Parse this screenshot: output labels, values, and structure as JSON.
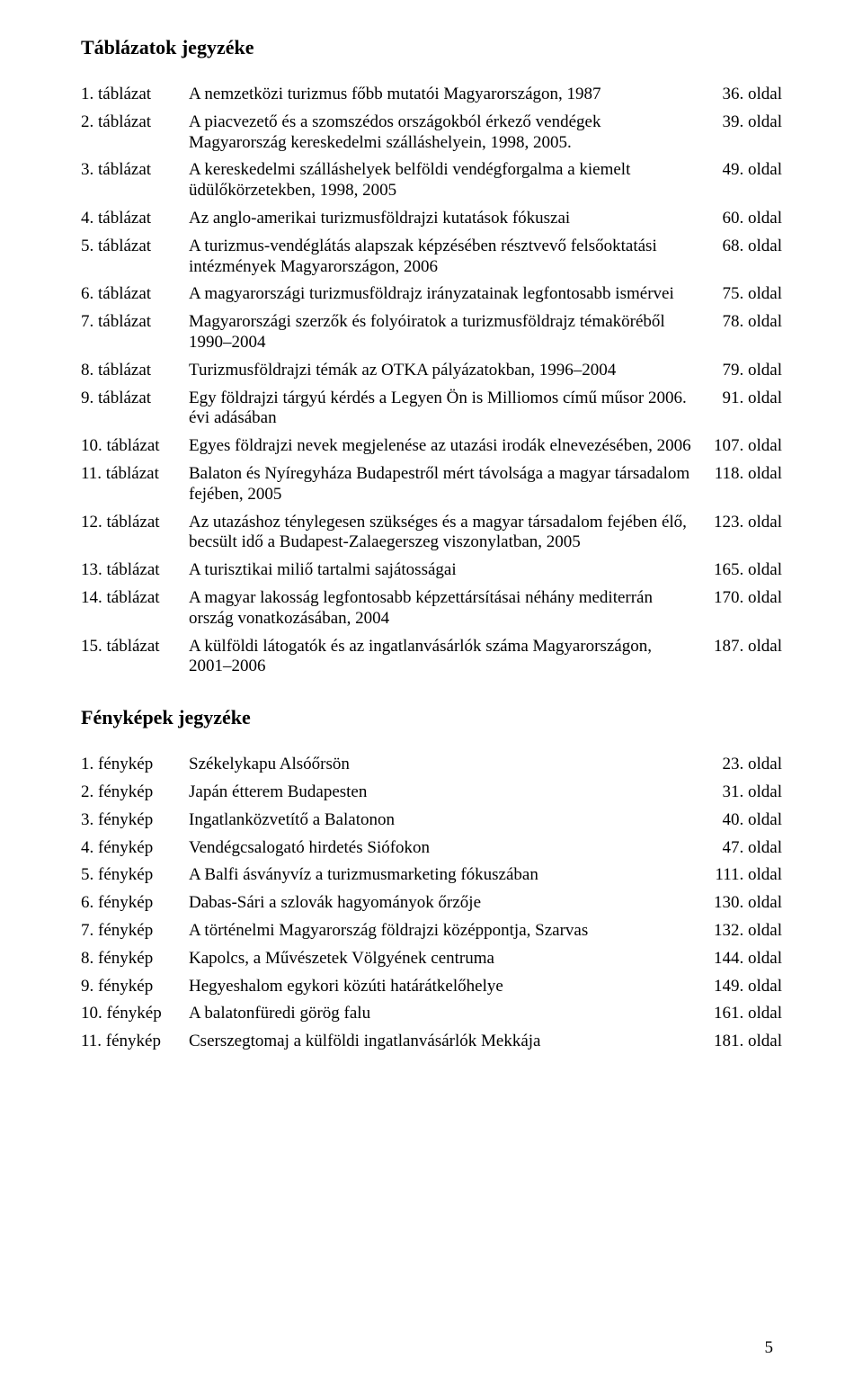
{
  "tables_heading": "Táblázatok jegyzéke",
  "photos_heading": "Fényképek jegyzéke",
  "page_number": "5",
  "tables": [
    {
      "label": "1. táblázat",
      "desc": "A nemzetközi turizmus főbb mutatói Magyarországon, 1987",
      "page": "36. oldal"
    },
    {
      "label": "2. táblázat",
      "desc": "A piacvezető és a szomszédos országokból érkező vendégek Magyarország kereskedelmi szálláshelyein, 1998, 2005.",
      "page": "39. oldal"
    },
    {
      "label": "3. táblázat",
      "desc": "A kereskedelmi szálláshelyek belföldi vendégforgalma a kiemelt üdülőkörzetekben, 1998, 2005",
      "page": "49. oldal"
    },
    {
      "label": "4. táblázat",
      "desc": "Az anglo-amerikai turizmusföldrajzi kutatások fókuszai",
      "page": "60. oldal"
    },
    {
      "label": "5. táblázat",
      "desc": "A turizmus-vendéglátás alapszak képzésében résztvevő felsőoktatási intézmények Magyarországon, 2006",
      "page": "68. oldal"
    },
    {
      "label": "6. táblázat",
      "desc": "A magyarországi turizmusföldrajz irányzatainak legfontosabb ismérvei",
      "page": "75. oldal"
    },
    {
      "label": "7. táblázat",
      "desc": "Magyarországi szerzők és folyóiratok a turizmusföldrajz témaköréből 1990–2004",
      "page": "78. oldal"
    },
    {
      "label": "8. táblázat",
      "desc": "Turizmusföldrajzi témák az OTKA pályázatokban, 1996–2004",
      "page": "79. oldal"
    },
    {
      "label": "9. táblázat",
      "desc": "Egy földrajzi tárgyú kérdés a Legyen Ön is Milliomos című műsor 2006. évi adásában",
      "page": "91. oldal"
    },
    {
      "label": "10. táblázat",
      "desc": "Egyes földrajzi nevek megjelenése az utazási irodák elnevezésében, 2006",
      "page": "107. oldal"
    },
    {
      "label": "11. táblázat",
      "desc": "Balaton és Nyíregyháza Budapestről mért távolsága a magyar társadalom fejében, 2005",
      "page": "118. oldal"
    },
    {
      "label": "12. táblázat",
      "desc": "Az utazáshoz ténylegesen szükséges és a magyar társadalom fejében élő, becsült idő a Budapest-Zalaegerszeg viszonylatban, 2005",
      "page": "123. oldal"
    },
    {
      "label": "13. táblázat",
      "desc": "A turisztikai miliő tartalmi sajátosságai",
      "page": "165. oldal"
    },
    {
      "label": "14. táblázat",
      "desc": "A magyar lakosság legfontosabb képzettársításai néhány mediterrán ország vonatkozásában, 2004",
      "page": "170. oldal"
    },
    {
      "label": "15. táblázat",
      "desc": "A külföldi látogatók és az ingatlanvásárlók száma Magyarországon, 2001–2006",
      "page": "187. oldal"
    }
  ],
  "photos": [
    {
      "label": "1. fénykép",
      "desc": "Székelykapu Alsóőrsön",
      "page": "23. oldal"
    },
    {
      "label": "2. fénykép",
      "desc": "Japán étterem Budapesten",
      "page": "31. oldal"
    },
    {
      "label": "3. fénykép",
      "desc": "Ingatlanközvetítő a Balatonon",
      "page": "40. oldal"
    },
    {
      "label": "4. fénykép",
      "desc": "Vendégcsalogató hirdetés Siófokon",
      "page": "47. oldal"
    },
    {
      "label": "5. fénykép",
      "desc": "A Balfi ásványvíz a turizmusmarketing fókuszában",
      "page": "111. oldal"
    },
    {
      "label": "6. fénykép",
      "desc": "Dabas-Sári a szlovák hagyományok őrzője",
      "page": "130. oldal"
    },
    {
      "label": "7. fénykép",
      "desc": "A történelmi Magyarország földrajzi középpontja, Szarvas",
      "page": "132. oldal"
    },
    {
      "label": "8. fénykép",
      "desc": "Kapolcs, a Művészetek Völgyének centruma",
      "page": "144. oldal"
    },
    {
      "label": "9. fénykép",
      "desc": "Hegyeshalom egykori közúti határátkelőhelye",
      "page": "149. oldal"
    },
    {
      "label": "10. fénykép",
      "desc": "A balatonfüredi görög falu",
      "page": "161. oldal"
    },
    {
      "label": "11. fénykép",
      "desc": "Cserszegtomaj a külföldi ingatlanvásárlók Mekkája",
      "page": "181. oldal"
    }
  ]
}
